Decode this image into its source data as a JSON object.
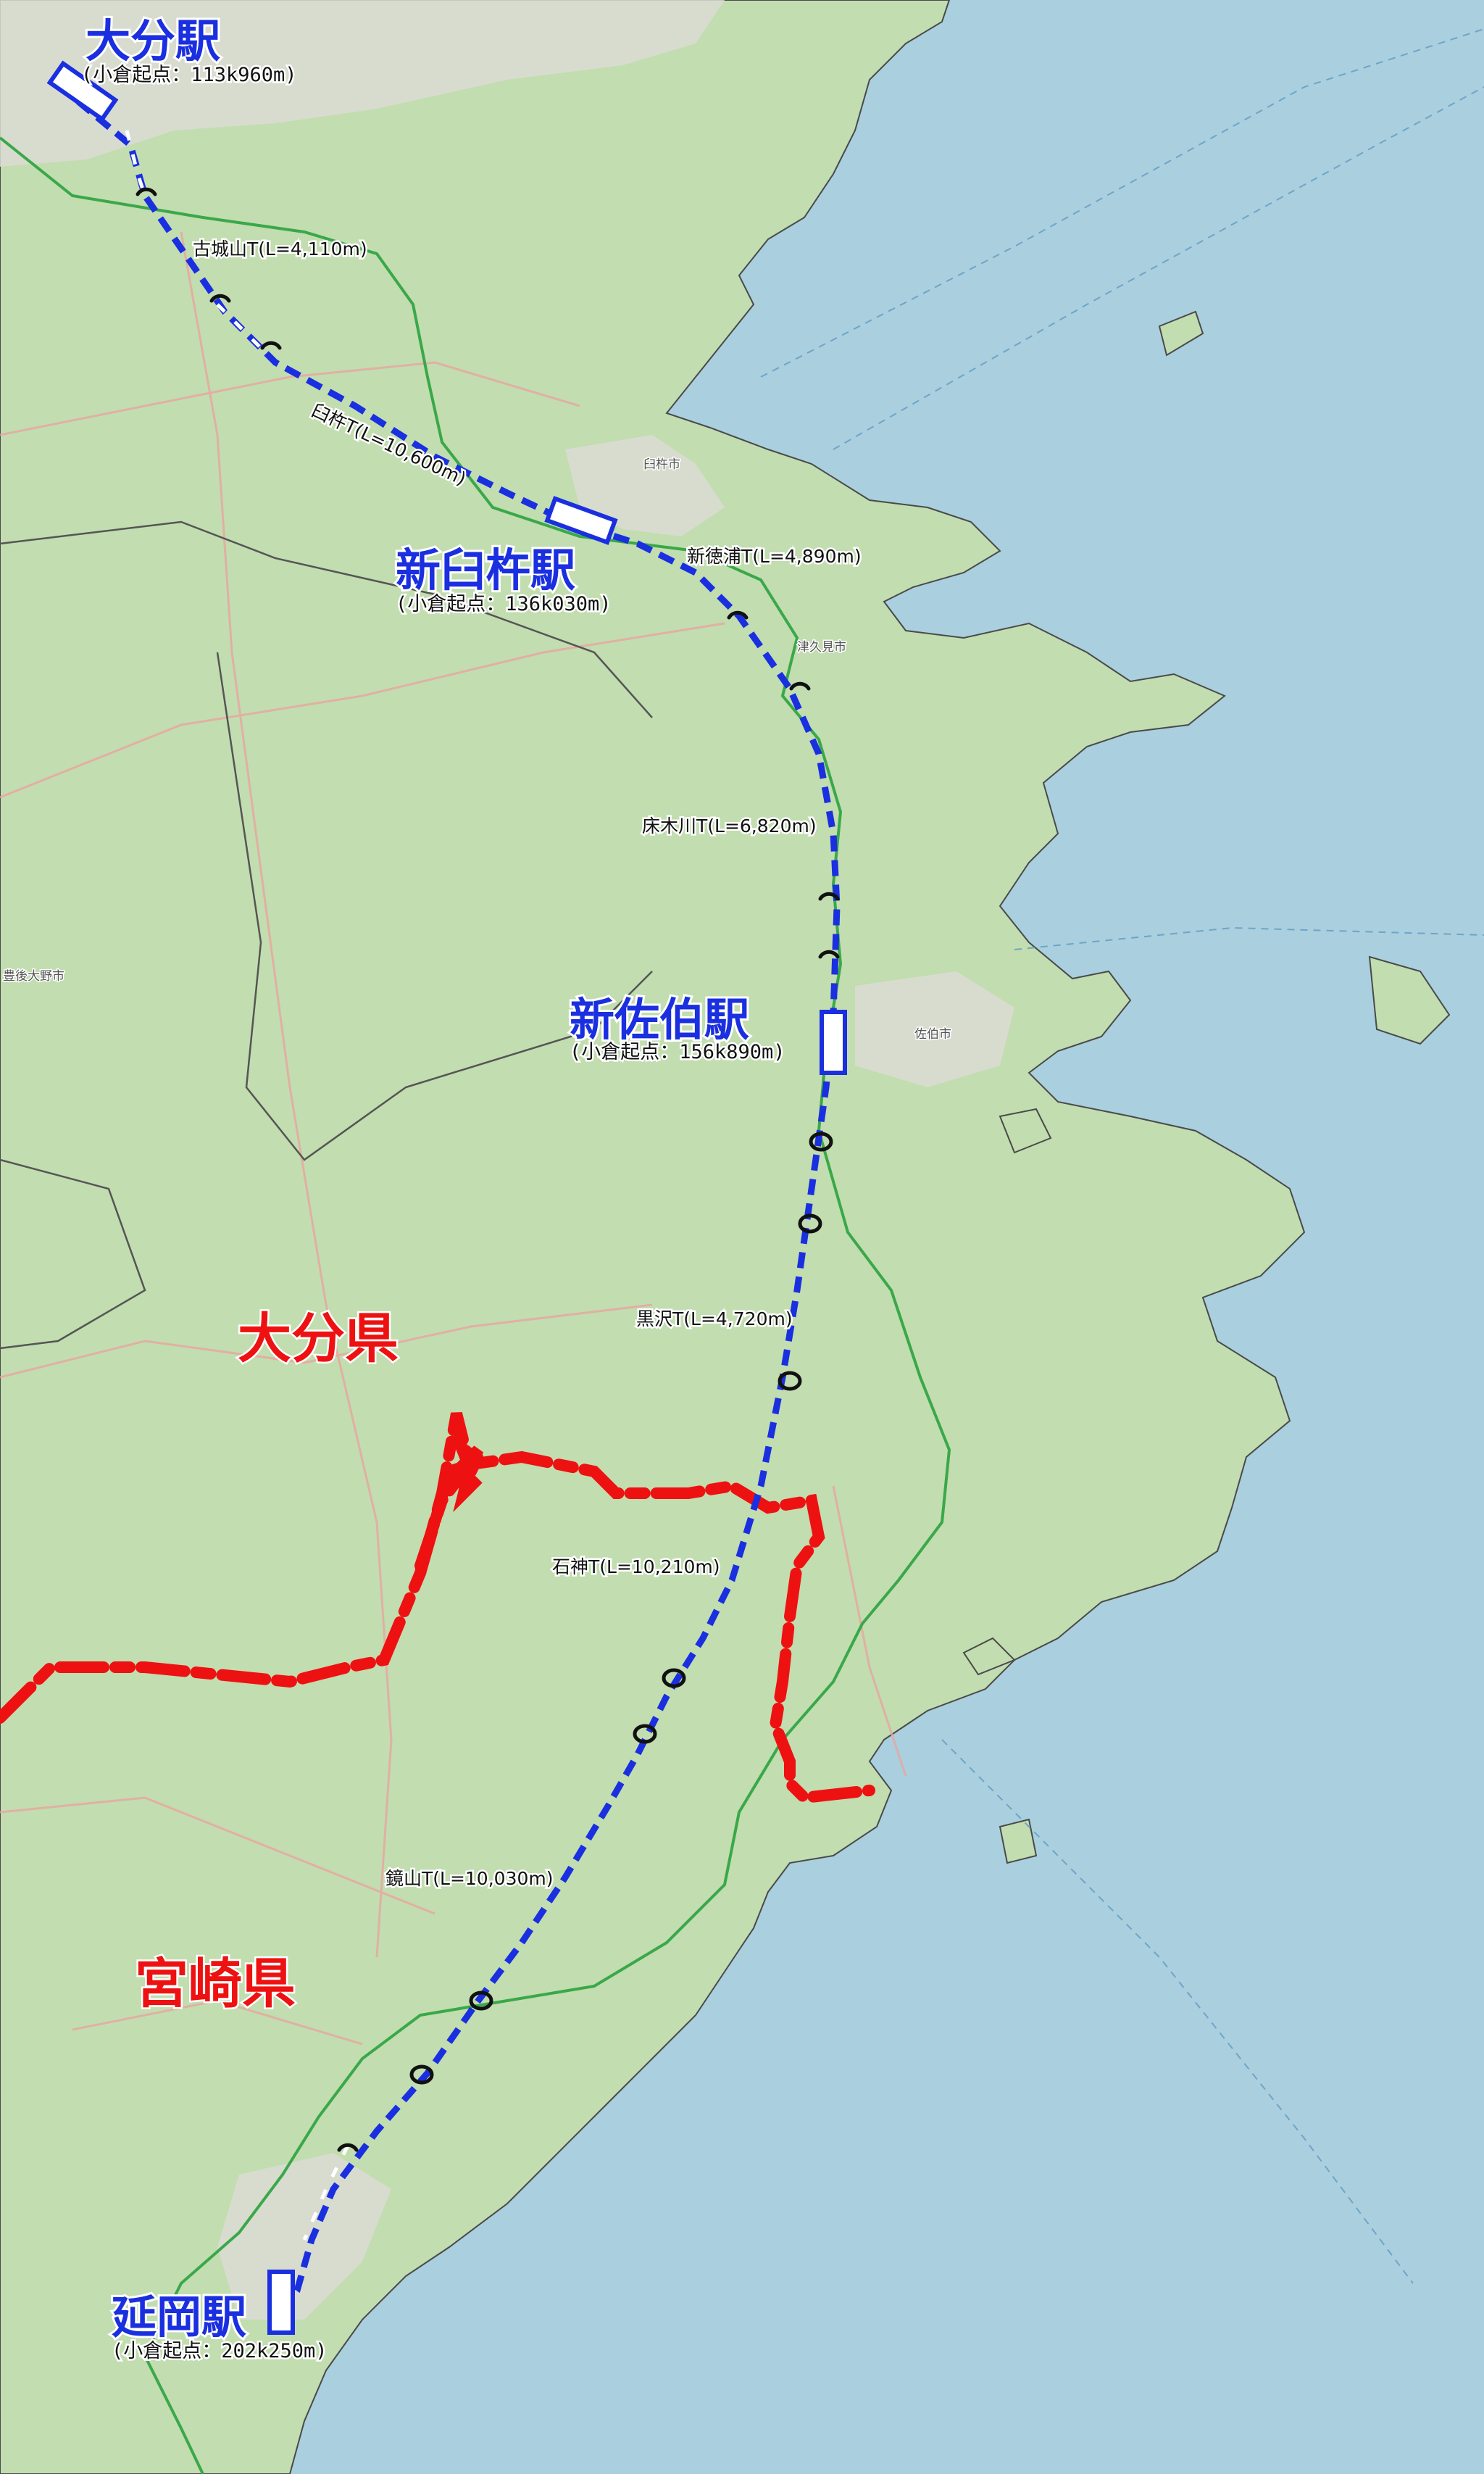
{
  "stations": [
    {
      "id": "oita",
      "name": "大分駅",
      "km": "(小倉起点：113k960m)"
    },
    {
      "id": "shin-usuki",
      "name": "新臼杵駅",
      "km": "(小倉起点：136k030m)"
    },
    {
      "id": "shin-saiki",
      "name": "新佐伯駅",
      "km": "(小倉起点：156k890m)"
    },
    {
      "id": "nobeoka",
      "name": "延岡駅",
      "km": "(小倉起点：202k250m)"
    }
  ],
  "tunnels": [
    {
      "id": "kojoyama",
      "label": "古城山T(L=4,110m)"
    },
    {
      "id": "usuki",
      "label": "臼杵T(L=10,600m)"
    },
    {
      "id": "shintokuura",
      "label": "新徳浦T(L=4,890m)"
    },
    {
      "id": "tokogigawa",
      "label": "床木川T(L=6,820m)"
    },
    {
      "id": "kurosawa",
      "label": "黒沢T(L=4,720m)"
    },
    {
      "id": "ishigami",
      "label": "石神T(L=10,210m)"
    },
    {
      "id": "kagamiyama",
      "label": "鏡山T(L=10,030m)"
    }
  ],
  "prefectures": [
    {
      "id": "oita-pref",
      "label": "大分県"
    },
    {
      "id": "miyazaki-pref",
      "label": "宮崎県"
    }
  ],
  "places": [
    {
      "id": "usuki-city",
      "label": "臼杵市"
    },
    {
      "id": "tsukumi-city",
      "label": "津久見市"
    },
    {
      "id": "saiki-city",
      "label": "佐伯市"
    },
    {
      "id": "bungo-ono-city",
      "label": "豊後大野市"
    }
  ],
  "colors": {
    "sea": "#aacfde",
    "land": "#c2ddb0",
    "urban": "#dcdcd4",
    "route": "#1a2fe0",
    "prefecture_border": "#ee1111",
    "existing_line": "#3aa84a",
    "road": "#e9a5a0"
  }
}
